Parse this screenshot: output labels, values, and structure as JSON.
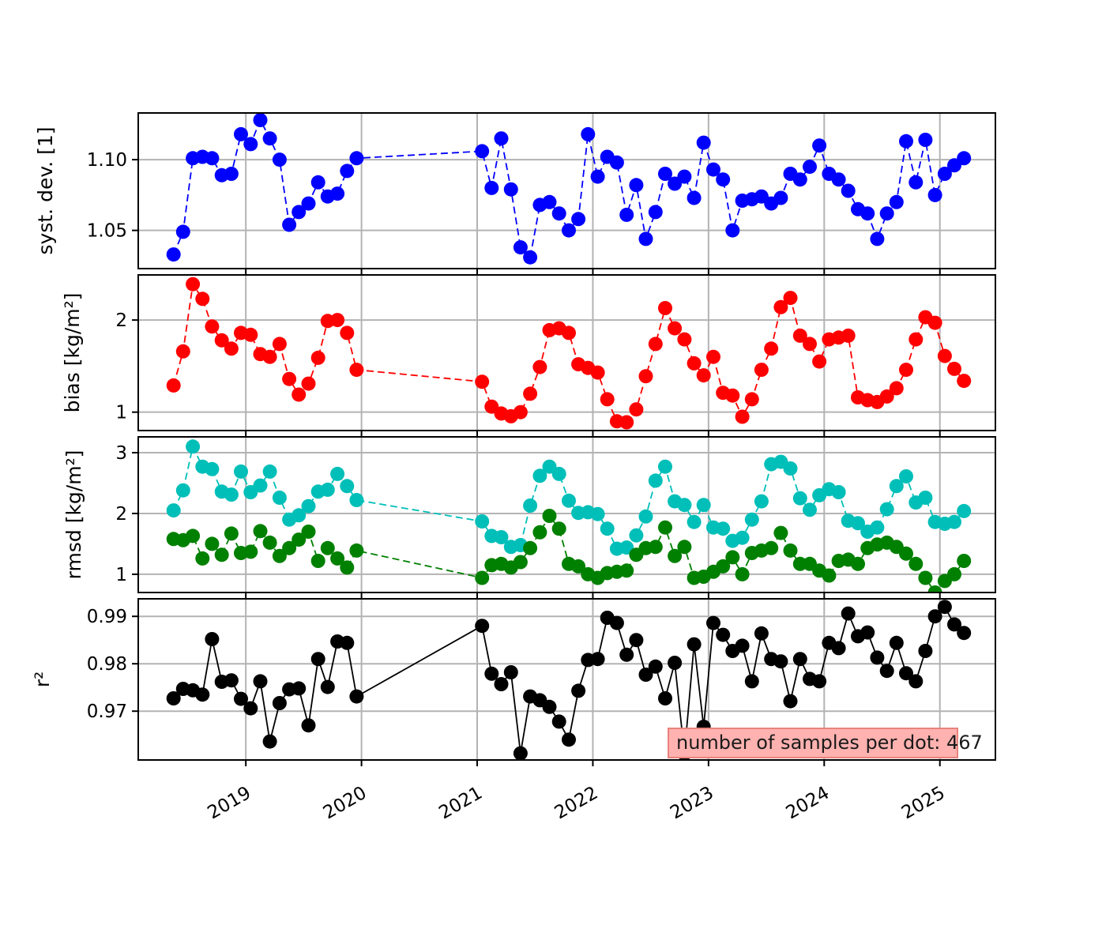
{
  "figure": {
    "background": "#ffffff",
    "grid_color": "#b3b3b3",
    "spine_color": "#000000"
  },
  "chart_data": {
    "type": "line",
    "title": "",
    "xlabel": "",
    "grid": true,
    "x_axis": {
      "lim": [
        2018.07,
        2025.48
      ],
      "ticks": [
        2019,
        2020,
        2021,
        2022,
        2023,
        2024,
        2025
      ],
      "tick_labels": [
        "2019",
        "2020",
        "2021",
        "2022",
        "2023",
        "2024",
        "2025"
      ],
      "tick_label_rotation_deg": 30
    },
    "x": [
      2018.375,
      2018.458,
      2018.542,
      2018.625,
      2018.708,
      2018.792,
      2018.875,
      2018.958,
      2019.042,
      2019.125,
      2019.208,
      2019.292,
      2019.375,
      2019.458,
      2019.542,
      2019.625,
      2019.708,
      2019.792,
      2019.875,
      2019.958,
      2021.042,
      2021.125,
      2021.208,
      2021.292,
      2021.375,
      2021.458,
      2021.542,
      2021.625,
      2021.708,
      2021.792,
      2021.875,
      2021.958,
      2022.042,
      2022.125,
      2022.208,
      2022.292,
      2022.375,
      2022.458,
      2022.542,
      2022.625,
      2022.708,
      2022.792,
      2022.875,
      2022.958,
      2023.042,
      2023.125,
      2023.208,
      2023.292,
      2023.375,
      2023.458,
      2023.542,
      2023.625,
      2023.708,
      2023.792,
      2023.875,
      2023.958,
      2024.042,
      2024.125,
      2024.208,
      2024.292,
      2024.375,
      2024.458,
      2024.542,
      2024.625,
      2024.708,
      2024.792,
      2024.875,
      2024.958,
      2025.042,
      2025.125,
      2025.208
    ],
    "panels": [
      {
        "name": "syst-dev",
        "ylabel": "syst. dev. [1]",
        "ylim": [
          1.023,
          1.133
        ],
        "yticks": [
          1.05,
          1.1
        ],
        "ytick_labels": [
          "1.05",
          "1.10"
        ],
        "series": [
          {
            "name": "syst-dev",
            "color": "#0000ff",
            "linestyle": "dashed",
            "marker": "o",
            "values": [
              1.033,
              1.049,
              1.101,
              1.102,
              1.101,
              1.089,
              1.09,
              1.118,
              1.111,
              1.128,
              1.115,
              1.1,
              1.054,
              1.063,
              1.069,
              1.084,
              1.074,
              1.076,
              1.092,
              1.101,
              1.106,
              1.08,
              1.115,
              1.079,
              1.038,
              1.031,
              1.068,
              1.07,
              1.062,
              1.05,
              1.058,
              1.118,
              1.088,
              1.102,
              1.098,
              1.061,
              1.082,
              1.044,
              1.063,
              1.09,
              1.083,
              1.088,
              1.073,
              1.112,
              1.093,
              1.086,
              1.05,
              1.071,
              1.072,
              1.074,
              1.069,
              1.073,
              1.09,
              1.086,
              1.095,
              1.11,
              1.09,
              1.086,
              1.078,
              1.065,
              1.062,
              1.044,
              1.062,
              1.07,
              1.113,
              1.084,
              1.114,
              1.075,
              1.09,
              1.096,
              1.101
            ]
          }
        ]
      },
      {
        "name": "bias",
        "ylabel": "bias [kg/m²]",
        "ylim": [
          0.8,
          2.49
        ],
        "yticks": [
          1,
          2
        ],
        "ytick_labels": [
          "1",
          "2"
        ],
        "series": [
          {
            "name": "bias",
            "color": "#ff0000",
            "linestyle": "dashed",
            "marker": "o",
            "values": [
              1.29,
              1.66,
              2.39,
              2.23,
              1.93,
              1.78,
              1.69,
              1.86,
              1.84,
              1.63,
              1.6,
              1.74,
              1.36,
              1.19,
              1.31,
              1.59,
              1.99,
              2.0,
              1.86,
              1.46,
              1.33,
              1.06,
              0.985,
              0.955,
              1.0,
              1.2,
              1.49,
              1.89,
              1.91,
              1.86,
              1.52,
              1.48,
              1.43,
              1.14,
              0.9,
              0.89,
              1.03,
              1.39,
              1.74,
              2.13,
              1.91,
              1.79,
              1.53,
              1.4,
              1.6,
              1.21,
              1.18,
              0.95,
              1.14,
              1.46,
              1.69,
              2.14,
              2.24,
              1.83,
              1.74,
              1.55,
              1.79,
              1.81,
              1.83,
              1.16,
              1.13,
              1.11,
              1.17,
              1.26,
              1.46,
              1.79,
              2.03,
              1.97,
              1.61,
              1.47,
              1.34
            ]
          }
        ]
      },
      {
        "name": "rmsd",
        "ylabel": "rmsd [kg/m²]",
        "ylim": [
          0.7,
          3.26
        ],
        "yticks": [
          1,
          2,
          3
        ],
        "ytick_labels": [
          "1",
          "2",
          "3"
        ],
        "series": [
          {
            "name": "rmsd-total",
            "color": "#00bfb8",
            "linestyle": "dashed",
            "marker": "o",
            "values": [
              2.05,
              2.38,
              3.1,
              2.77,
              2.73,
              2.36,
              2.31,
              2.69,
              2.35,
              2.46,
              2.69,
              2.26,
              1.9,
              1.97,
              2.12,
              2.36,
              2.39,
              2.65,
              2.45,
              2.22,
              1.87,
              1.63,
              1.61,
              1.45,
              1.48,
              2.13,
              2.62,
              2.77,
              2.65,
              2.21,
              2.01,
              2.02,
              1.99,
              1.75,
              1.42,
              1.44,
              1.64,
              1.95,
              2.54,
              2.77,
              2.2,
              2.14,
              1.86,
              2.14,
              1.77,
              1.75,
              1.55,
              1.6,
              1.9,
              2.2,
              2.81,
              2.85,
              2.74,
              2.25,
              2.06,
              2.3,
              2.4,
              2.35,
              1.88,
              1.84,
              1.7,
              1.77,
              2.07,
              2.45,
              2.61,
              2.18,
              2.26,
              1.86,
              1.83,
              1.86,
              2.04
            ]
          },
          {
            "name": "rmsd-unbiased",
            "color": "#008000",
            "linestyle": "dashed",
            "marker": "o",
            "values": [
              1.58,
              1.56,
              1.63,
              1.26,
              1.5,
              1.32,
              1.67,
              1.35,
              1.37,
              1.71,
              1.52,
              1.3,
              1.43,
              1.57,
              1.7,
              1.22,
              1.43,
              1.26,
              1.11,
              1.39,
              0.94,
              1.15,
              1.17,
              1.11,
              1.2,
              1.43,
              1.69,
              1.96,
              1.75,
              1.17,
              1.13,
              1.0,
              0.94,
              1.02,
              1.04,
              1.06,
              1.32,
              1.43,
              1.45,
              1.77,
              1.3,
              1.45,
              0.94,
              0.96,
              1.04,
              1.13,
              1.28,
              1.0,
              1.35,
              1.39,
              1.43,
              1.68,
              1.39,
              1.17,
              1.17,
              1.06,
              0.98,
              1.22,
              1.24,
              1.17,
              1.43,
              1.49,
              1.52,
              1.45,
              1.34,
              1.17,
              0.94,
              0.7,
              0.89,
              1.0,
              1.22
            ]
          }
        ]
      },
      {
        "name": "r2",
        "ylabel": "r²",
        "ylim": [
          0.9597,
          0.9937
        ],
        "yticks": [
          0.97,
          0.98,
          0.99
        ],
        "ytick_labels": [
          "0.97",
          "0.98",
          "0.99"
        ],
        "series": [
          {
            "name": "r2",
            "color": "#000000",
            "linestyle": "solid",
            "marker": "o",
            "values": [
              0.9727,
              0.9747,
              0.9744,
              0.9735,
              0.9852,
              0.9762,
              0.9765,
              0.9726,
              0.9706,
              0.9763,
              0.9636,
              0.9717,
              0.9746,
              0.9748,
              0.967,
              0.981,
              0.9751,
              0.9847,
              0.9844,
              0.9731,
              0.988,
              0.9779,
              0.9757,
              0.9782,
              0.9611,
              0.9731,
              0.9723,
              0.9709,
              0.9678,
              0.964,
              0.9743,
              0.9808,
              0.981,
              0.9897,
              0.9886,
              0.9819,
              0.985,
              0.9777,
              0.9794,
              0.9727,
              0.9802,
              0.961,
              0.9841,
              0.9667,
              0.9886,
              0.9861,
              0.9827,
              0.9838,
              0.9763,
              0.9864,
              0.981,
              0.9805,
              0.9721,
              0.981,
              0.9768,
              0.9763,
              0.9844,
              0.9833,
              0.9906,
              0.9858,
              0.9866,
              0.9813,
              0.9785,
              0.9844,
              0.978,
              0.9763,
              0.9827,
              0.99,
              0.992,
              0.9883,
              0.9865
            ]
          }
        ]
      }
    ],
    "annotation": {
      "text": "number of samples per dot: 467",
      "facecolor": "#ffb2b0",
      "edgecolor": "#e9837c",
      "textcolor": "#1a1a1a"
    }
  }
}
